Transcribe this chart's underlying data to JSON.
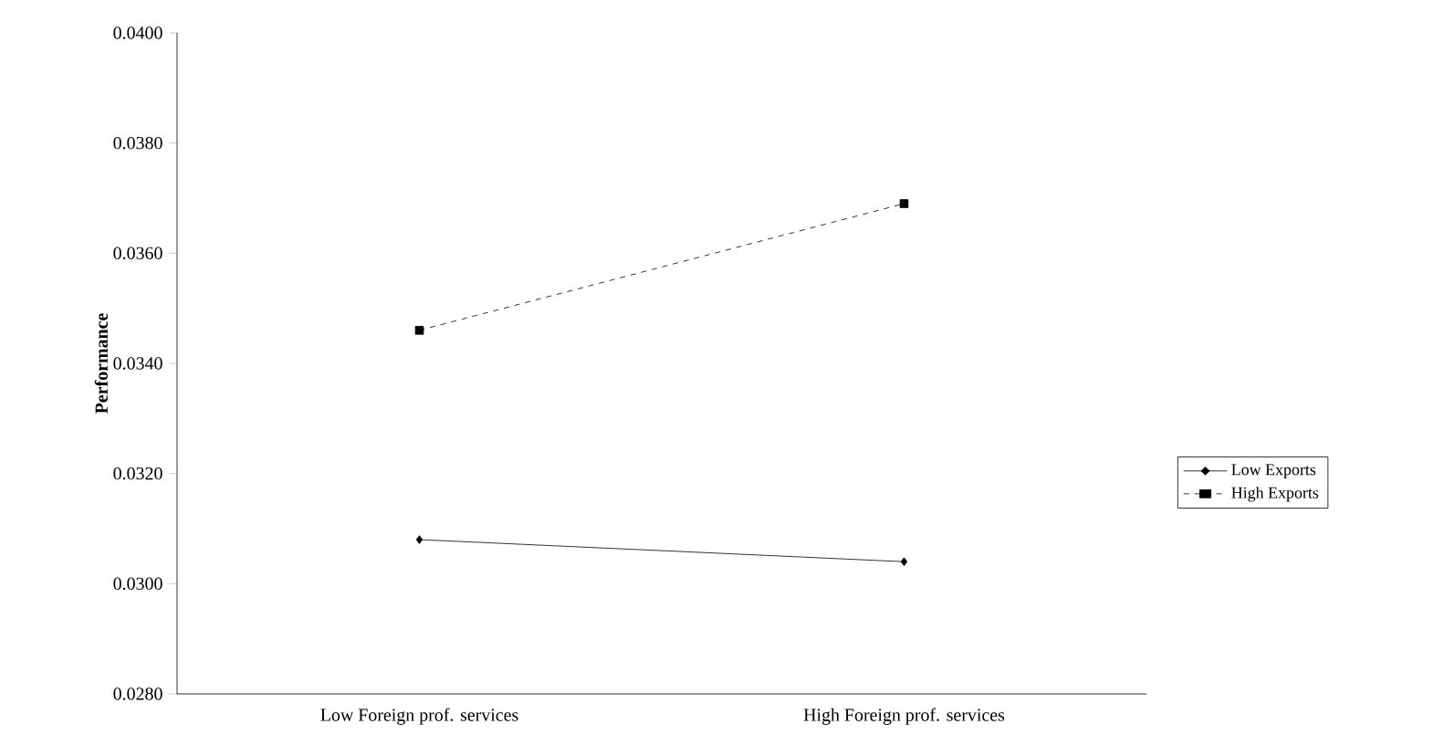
{
  "chart_data": {
    "type": "line",
    "ylabel": "Performance",
    "categories": [
      "Low Foreign prof. services",
      "High Foreign prof. services"
    ],
    "series": [
      {
        "name": "Low Exports",
        "color": "#000000",
        "values": [
          0.0308,
          0.0304
        ],
        "marker": "diamond",
        "line_style": "solid"
      },
      {
        "name": "High Exports",
        "color": "#000000",
        "values": [
          0.0346,
          0.0369
        ],
        "marker": "square",
        "line_style": "dashed"
      }
    ],
    "ylim": [
      0.028,
      0.04
    ],
    "yticks": [
      {
        "value": 0.028,
        "label": "0.0280"
      },
      {
        "value": 0.03,
        "label": "0.0300"
      },
      {
        "value": 0.032,
        "label": "0.0320"
      },
      {
        "value": 0.034,
        "label": "0.0340"
      },
      {
        "value": 0.036,
        "label": "0.0360"
      },
      {
        "value": 0.038,
        "label": "0.0380"
      },
      {
        "value": 0.04,
        "label": "0.0400"
      }
    ],
    "grid": false,
    "legend": "right"
  }
}
